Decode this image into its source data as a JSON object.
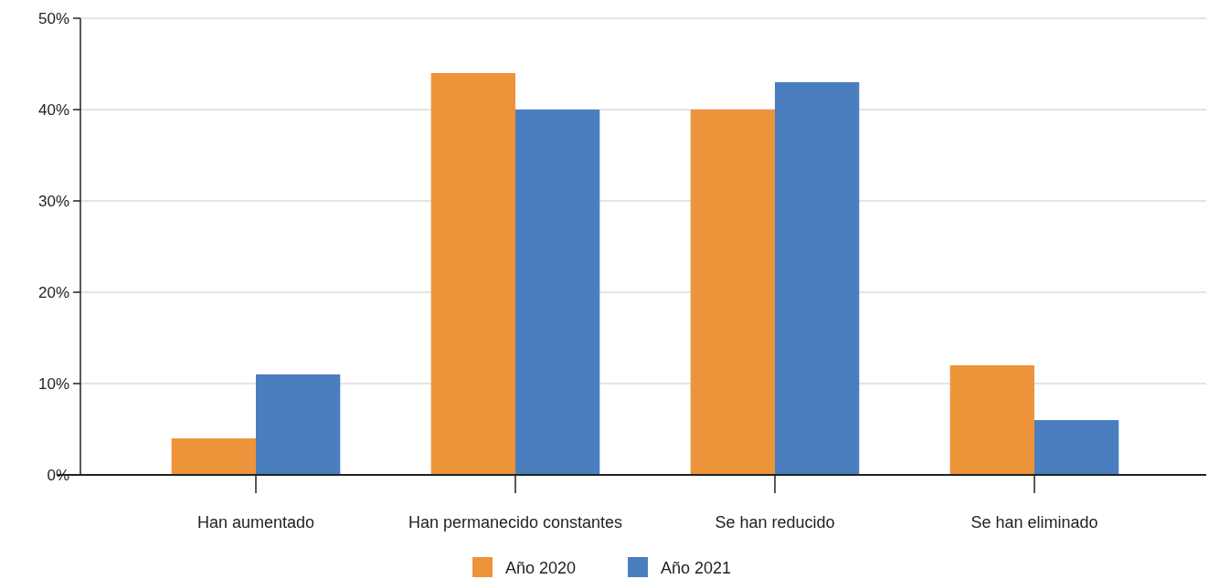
{
  "chart_data": {
    "type": "bar",
    "categories": [
      "Han aumentado",
      "Han permanecido constantes",
      "Se han reducido",
      "Se han eliminado"
    ],
    "series": [
      {
        "name": "Año 2020",
        "color": "#ed933a",
        "values": [
          4,
          44,
          40,
          12
        ]
      },
      {
        "name": "Año 2021",
        "color": "#4a7ebf",
        "values": [
          11,
          40,
          43,
          6
        ]
      }
    ],
    "ylim": [
      0,
      50
    ],
    "yticks": [
      {
        "value": 0,
        "label": "0%"
      },
      {
        "value": 10,
        "label": "10%"
      },
      {
        "value": 20,
        "label": "20%"
      },
      {
        "value": 30,
        "label": "30%"
      },
      {
        "value": 40,
        "label": "40%"
      },
      {
        "value": 50,
        "label": "50%"
      }
    ],
    "grid": "y",
    "legend": "bottom"
  }
}
